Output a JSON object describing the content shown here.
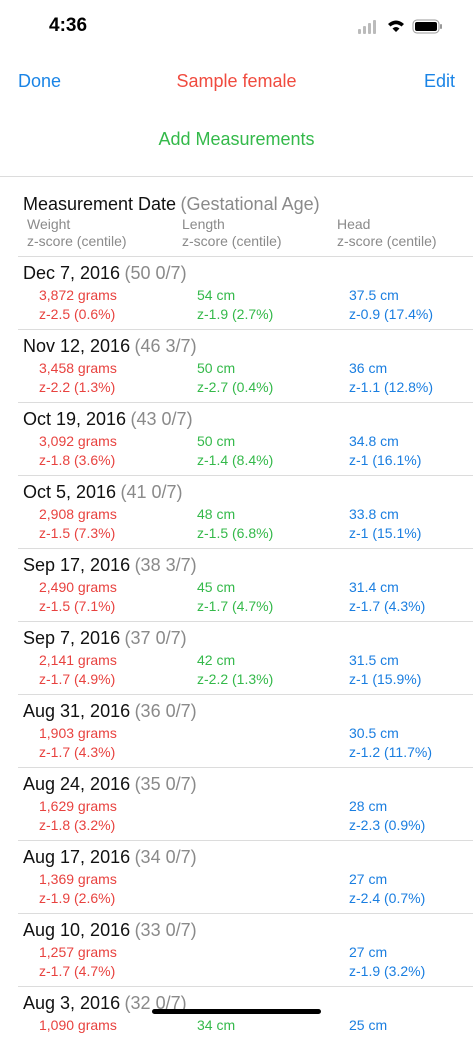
{
  "status_bar": {
    "time": "4:36"
  },
  "nav": {
    "done": "Done",
    "title": "Sample female",
    "edit": "Edit"
  },
  "add_button": "Add Measurements",
  "header": {
    "date": "Measurement Date",
    "ga": "(Gestational Age)",
    "weight": "Weight",
    "length": "Length",
    "head": "Head",
    "weight_sub": "z-score (centile)",
    "length_sub": "z-score (centile)",
    "head_sub": "z-score (centile)"
  },
  "rows": [
    {
      "date": "Dec 7, 2016",
      "ga": "(50 0/7)",
      "weight": "3,872 grams",
      "weight_z": "z-2.5 (0.6%)",
      "length": "54 cm",
      "length_z": "z-1.9 (2.7%)",
      "head": "37.5 cm",
      "head_z": "z-0.9 (17.4%)"
    },
    {
      "date": "Nov 12, 2016",
      "ga": "(46 3/7)",
      "weight": "3,458 grams",
      "weight_z": "z-2.2 (1.3%)",
      "length": "50 cm",
      "length_z": "z-2.7 (0.4%)",
      "head": "36 cm",
      "head_z": "z-1.1 (12.8%)"
    },
    {
      "date": "Oct 19, 2016",
      "ga": "(43 0/7)",
      "weight": "3,092 grams",
      "weight_z": "z-1.8 (3.6%)",
      "length": "50 cm",
      "length_z": "z-1.4 (8.4%)",
      "head": "34.8 cm",
      "head_z": "z-1 (16.1%)"
    },
    {
      "date": "Oct 5, 2016",
      "ga": "(41 0/7)",
      "weight": "2,908 grams",
      "weight_z": "z-1.5 (7.3%)",
      "length": "48 cm",
      "length_z": "z-1.5 (6.8%)",
      "head": "33.8 cm",
      "head_z": "z-1 (15.1%)"
    },
    {
      "date": "Sep 17, 2016",
      "ga": "(38 3/7)",
      "weight": "2,490 grams",
      "weight_z": "z-1.5 (7.1%)",
      "length": "45 cm",
      "length_z": "z-1.7 (4.7%)",
      "head": "31.4 cm",
      "head_z": "z-1.7 (4.3%)"
    },
    {
      "date": "Sep 7, 2016",
      "ga": "(37 0/7)",
      "weight": "2,141 grams",
      "weight_z": "z-1.7 (4.9%)",
      "length": "42 cm",
      "length_z": "z-2.2 (1.3%)",
      "head": "31.5 cm",
      "head_z": "z-1 (15.9%)"
    },
    {
      "date": "Aug 31, 2016",
      "ga": "(36 0/7)",
      "weight": "1,903 grams",
      "weight_z": "z-1.7 (4.3%)",
      "head": "30.5 cm",
      "head_z": "z-1.2 (11.7%)"
    },
    {
      "date": "Aug 24, 2016",
      "ga": "(35 0/7)",
      "weight": "1,629 grams",
      "weight_z": "z-1.8 (3.2%)",
      "head": "28 cm",
      "head_z": "z-2.3 (0.9%)"
    },
    {
      "date": "Aug 17, 2016",
      "ga": "(34 0/7)",
      "weight": "1,369 grams",
      "weight_z": "z-1.9 (2.6%)",
      "head": "27 cm",
      "head_z": "z-2.4 (0.7%)"
    },
    {
      "date": "Aug 10, 2016",
      "ga": "(33 0/7)",
      "weight": "1,257 grams",
      "weight_z": "z-1.7 (4.7%)",
      "head": "27 cm",
      "head_z": "z-1.9 (3.2%)"
    },
    {
      "date": "Aug 3, 2016",
      "ga": "(32 0/7)",
      "weight": "1,090 grams",
      "length": "34 cm",
      "head": "25 cm"
    }
  ]
}
